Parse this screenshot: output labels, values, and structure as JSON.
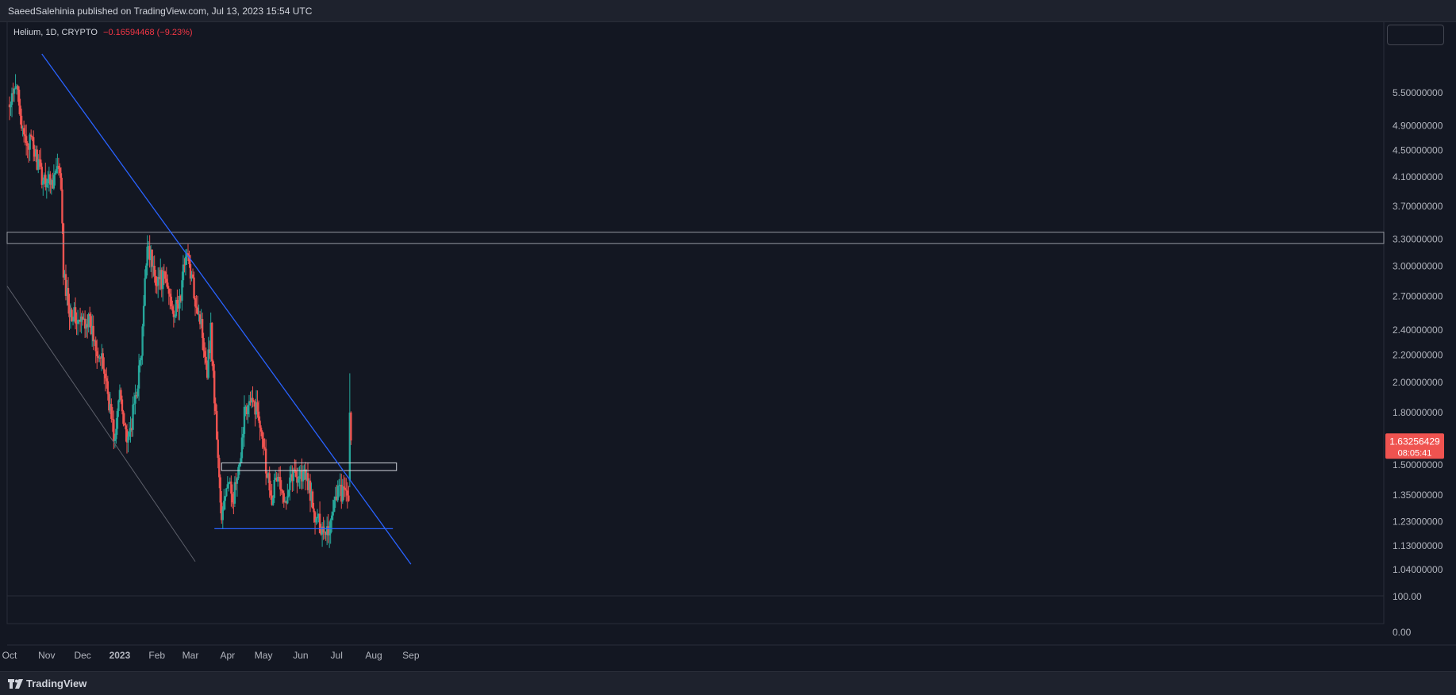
{
  "header": {
    "publish_text": "SaeedSalehinia published on TradingView.com, Jul 13, 2023 15:54 UTC"
  },
  "footer": {
    "brand": "TradingView"
  },
  "legend": {
    "symbol": "Helium, 1D, CRYPTO",
    "change": "−0.16594468 (−9.23%)"
  },
  "chart_data": {
    "type": "candlestick",
    "title": "Helium, 1D, CRYPTO",
    "price_axis_labels": [
      "5.50000000",
      "4.90000000",
      "4.50000000",
      "4.10000000",
      "3.70000000",
      "3.30000000",
      "3.00000000",
      "2.70000000",
      "2.40000000",
      "2.20000000",
      "2.00000000",
      "1.80000000",
      "1.50000000",
      "1.35000000",
      "1.23000000",
      "1.13000000",
      "1.04000000"
    ],
    "price_axis_values": [
      5.5,
      4.9,
      4.5,
      4.1,
      3.7,
      3.3,
      3.0,
      2.7,
      2.4,
      2.2,
      2.0,
      1.8,
      1.5,
      1.35,
      1.23,
      1.13,
      1.04
    ],
    "ylim": [
      1.0,
      6.2
    ],
    "y_scale": "log",
    "volume_axis_labels": [
      "100.00",
      "0.00"
    ],
    "time_axis_labels": [
      "Oct",
      "Nov",
      "Dec",
      "2023",
      "Feb",
      "Mar",
      "Apr",
      "May",
      "Jun",
      "Jul",
      "Aug",
      "Sep"
    ],
    "time_axis_dates": [
      "2022-10-01",
      "2022-11-01",
      "2022-12-01",
      "2023-01-01",
      "2023-02-01",
      "2023-03-01",
      "2023-04-01",
      "2023-05-01",
      "2023-06-01",
      "2023-07-01",
      "2023-08-01",
      "2023-09-01"
    ],
    "current_price": {
      "value": 1.63256429,
      "label": "1.63256429",
      "countdown": "08:05:41"
    },
    "anchors": [
      [
        "2022-10-01",
        5.2
      ],
      [
        "2022-10-08",
        5.7
      ],
      [
        "2022-10-12",
        4.7
      ],
      [
        "2022-10-20",
        4.6
      ],
      [
        "2022-10-28",
        4.1
      ],
      [
        "2022-11-05",
        4.05
      ],
      [
        "2022-11-10",
        4.2
      ],
      [
        "2022-11-13",
        4.0
      ],
      [
        "2022-11-15",
        2.9
      ],
      [
        "2022-11-20",
        2.6
      ],
      [
        "2022-11-28",
        2.45
      ],
      [
        "2022-12-05",
        2.5
      ],
      [
        "2022-12-12",
        2.3
      ],
      [
        "2022-12-20",
        2.05
      ],
      [
        "2022-12-28",
        1.62
      ],
      [
        "2023-01-01",
        1.95
      ],
      [
        "2023-01-08",
        1.6
      ],
      [
        "2023-01-14",
        1.9
      ],
      [
        "2023-01-19",
        2.2
      ],
      [
        "2023-01-24",
        3.3
      ],
      [
        "2023-01-30",
        2.9
      ],
      [
        "2023-02-08",
        2.85
      ],
      [
        "2023-02-16",
        2.55
      ],
      [
        "2023-02-21",
        2.7
      ],
      [
        "2023-02-25",
        3.2
      ],
      [
        "2023-03-03",
        2.8
      ],
      [
        "2023-03-10",
        2.45
      ],
      [
        "2023-03-15",
        2.1
      ],
      [
        "2023-03-18",
        2.4
      ],
      [
        "2023-03-21",
        1.9
      ],
      [
        "2023-03-24",
        1.55
      ],
      [
        "2023-03-27",
        1.22
      ],
      [
        "2023-03-31",
        1.4
      ],
      [
        "2023-04-06",
        1.35
      ],
      [
        "2023-04-12",
        1.5
      ],
      [
        "2023-04-15",
        1.85
      ],
      [
        "2023-04-24",
        1.85
      ],
      [
        "2023-04-30",
        1.7
      ],
      [
        "2023-05-03",
        1.5
      ],
      [
        "2023-05-08",
        1.35
      ],
      [
        "2023-05-13",
        1.45
      ],
      [
        "2023-05-18",
        1.3
      ],
      [
        "2023-05-23",
        1.45
      ],
      [
        "2023-05-28",
        1.45
      ],
      [
        "2023-06-03",
        1.45
      ],
      [
        "2023-06-08",
        1.4
      ],
      [
        "2023-06-12",
        1.25
      ],
      [
        "2023-06-20",
        1.2
      ],
      [
        "2023-06-25",
        1.2
      ],
      [
        "2023-06-29",
        1.33
      ],
      [
        "2023-07-02",
        1.38
      ],
      [
        "2023-07-07",
        1.35
      ],
      [
        "2023-07-11",
        1.36
      ],
      [
        "2023-07-12",
        1.8
      ],
      [
        "2023-07-13",
        1.63
      ]
    ],
    "drawings": {
      "resistance_band": [
        3.25,
        3.38
      ],
      "support_zone": [
        1.47,
        1.51
      ],
      "support_line": 1.2,
      "support_line_dates": [
        "2023-03-21",
        "2023-08-17"
      ],
      "support_zone_dates": [
        "2023-03-27",
        "2023-08-20"
      ],
      "downtrend_line": [
        [
          "2022-10-28",
          6.3
        ],
        [
          "2023-09-01",
          1.06
        ]
      ],
      "lower_channel_line": [
        [
          "2022-10-01",
          2.8
        ],
        [
          "2023-03-05",
          1.07
        ]
      ]
    },
    "colors": {
      "up": "#26a69a",
      "down": "#ef5350",
      "trendline": "#2962ff",
      "grid": "#363a45",
      "background": "#131722"
    }
  }
}
